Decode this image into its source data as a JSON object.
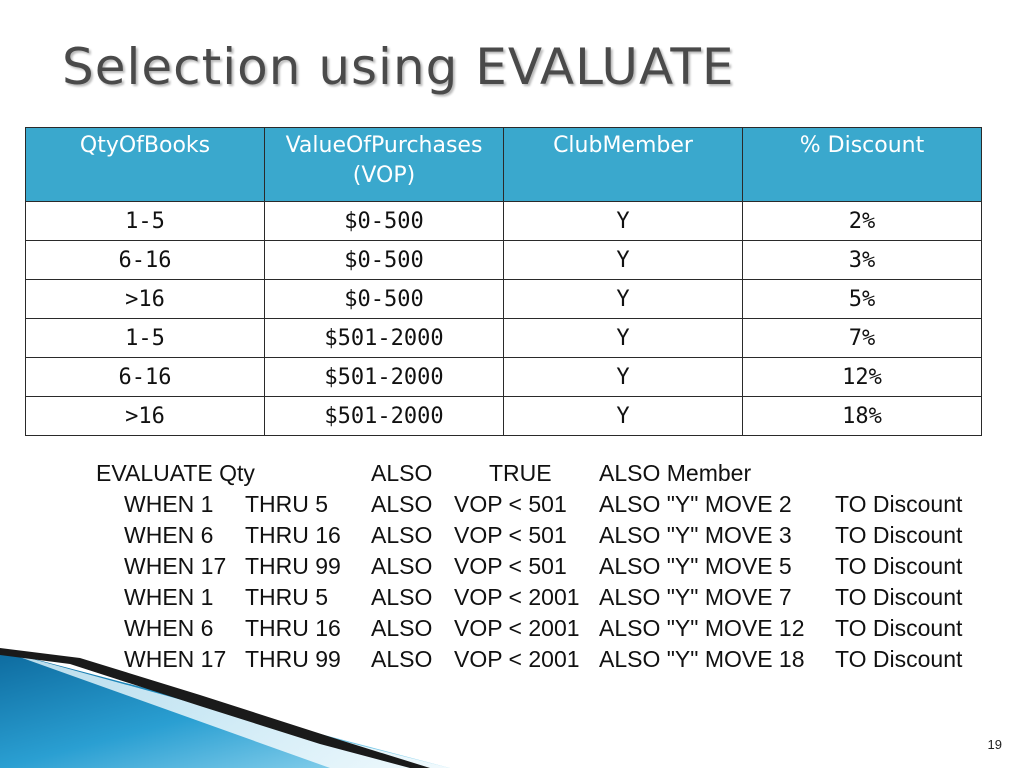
{
  "slide": {
    "title": "Selection using EVALUATE",
    "page_number": "19"
  },
  "table": {
    "headers": [
      "QtyOfBooks",
      "ValueOfPurchases\n(VOP)",
      "ClubMember",
      "% Discount"
    ],
    "rows": [
      [
        "1-5",
        "$0-500",
        "Y",
        "2%"
      ],
      [
        "6-16",
        "$0-500",
        "Y",
        "3%"
      ],
      [
        ">16",
        "$0-500",
        "Y",
        "5%"
      ],
      [
        "1-5",
        "$501-2000",
        "Y",
        "7%"
      ],
      [
        "6-16",
        "$501-2000",
        "Y",
        "12%"
      ],
      [
        ">16",
        "$501-2000",
        "Y",
        "18%"
      ]
    ]
  },
  "code": {
    "header": [
      "EVALUATE Qty",
      "ALSO",
      "TRUE",
      "ALSO Member"
    ],
    "lines": [
      [
        "WHEN 1",
        "THRU 5",
        "ALSO",
        "VOP < 501",
        "ALSO \"Y\" MOVE 2",
        "TO Discount"
      ],
      [
        "WHEN 6",
        "THRU 16",
        "ALSO",
        "VOP < 501",
        "ALSO \"Y\" MOVE 3",
        "TO Discount"
      ],
      [
        "WHEN 17",
        "THRU 99",
        "ALSO",
        "VOP < 501",
        "ALSO \"Y\" MOVE 5",
        "TO Discount"
      ],
      [
        "WHEN 1",
        "THRU 5",
        "ALSO",
        "VOP < 2001",
        "ALSO \"Y\" MOVE 7",
        "TO Discount"
      ],
      [
        "WHEN 6",
        "THRU 16",
        "ALSO",
        "VOP < 2001",
        "ALSO \"Y\" MOVE 12",
        "TO Discount"
      ],
      [
        "WHEN 17",
        "THRU 99",
        "ALSO",
        "VOP < 2001",
        "ALSO \"Y\" MOVE 18",
        "TO Discount"
      ]
    ]
  },
  "colors": {
    "header_fill": "#3aa8cd",
    "title_text": "#4a4a4a",
    "decor_blue": "#1f8fc4"
  }
}
